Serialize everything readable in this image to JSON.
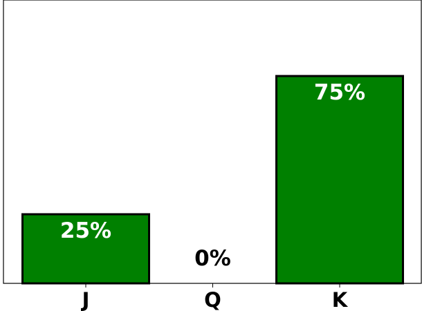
{
  "chart_data": {
    "type": "bar",
    "title": "",
    "xlabel": "",
    "ylabel": "",
    "categories": [
      "J",
      "Q",
      "K"
    ],
    "values": [
      25,
      0,
      75
    ],
    "data_labels": [
      "25%",
      "0%",
      "75%"
    ],
    "ylim": [
      0,
      100
    ],
    "grid": false,
    "legend": "none",
    "colors": {
      "bar_fill": "#008000",
      "bar_edge": "#000000",
      "label_inside": "#ffffff",
      "label_outside": "#000000"
    }
  }
}
